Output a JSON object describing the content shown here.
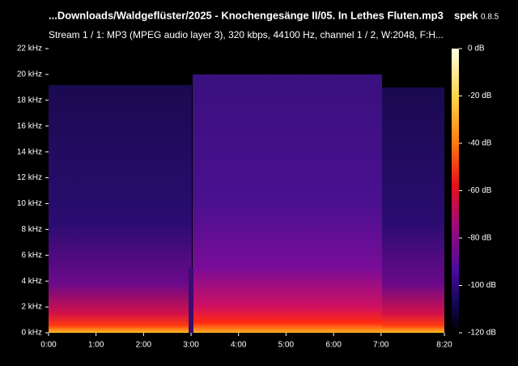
{
  "chart_data": {
    "type": "spectrogram",
    "title": "...Downloads/Waldgeflüster/2025 - Knochengesänge II/05. In Lethes Fluten.mp3",
    "app_name": "spek",
    "app_version": "0.8.5",
    "subtitle": "Stream 1 / 1: MP3 (MPEG audio layer 3), 320 kbps, 44100 Hz, channel 1 / 2, W:2048, F:H...",
    "xlim": [
      0,
      500
    ],
    "xticks": [
      {
        "value": 0,
        "label": "0:00"
      },
      {
        "value": 60,
        "label": "1:00"
      },
      {
        "value": 120,
        "label": "2:00"
      },
      {
        "value": 180,
        "label": "3:00"
      },
      {
        "value": 240,
        "label": "4:00"
      },
      {
        "value": 300,
        "label": "5:00"
      },
      {
        "value": 360,
        "label": "6:00"
      },
      {
        "value": 420,
        "label": "7:00"
      },
      {
        "value": 500,
        "label": "8:20"
      }
    ],
    "ylim": [
      0,
      22
    ],
    "yticks": [
      {
        "value": 0,
        "label": "0 kHz"
      },
      {
        "value": 2,
        "label": "2 kHz"
      },
      {
        "value": 4,
        "label": "4 kHz"
      },
      {
        "value": 6,
        "label": "6 kHz"
      },
      {
        "value": 8,
        "label": "8 kHz"
      },
      {
        "value": 10,
        "label": "10 kHz"
      },
      {
        "value": 12,
        "label": "12 kHz"
      },
      {
        "value": 14,
        "label": "14 kHz"
      },
      {
        "value": 16,
        "label": "16 kHz"
      },
      {
        "value": 18,
        "label": "18 kHz"
      },
      {
        "value": 20,
        "label": "20 kHz"
      },
      {
        "value": 22,
        "label": "22 kHz"
      }
    ],
    "zlim": [
      -120,
      0
    ],
    "zticks": [
      {
        "value": 0,
        "label": "0 dB"
      },
      {
        "value": -20,
        "label": "-20 dB"
      },
      {
        "value": -40,
        "label": "-40 dB"
      },
      {
        "value": -60,
        "label": "-60 dB"
      },
      {
        "value": -80,
        "label": "-80 dB"
      },
      {
        "value": -100,
        "label": "-100 dB"
      },
      {
        "value": -120,
        "label": "-120 dB"
      }
    ]
  }
}
